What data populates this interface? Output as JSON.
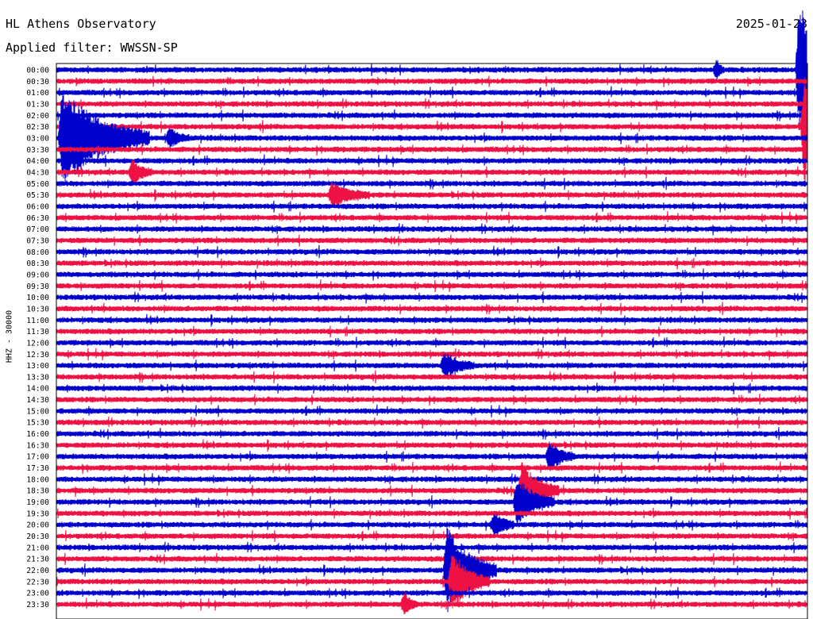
{
  "header": {
    "station": "HL Athens Observatory",
    "date": "2025-01-23",
    "filter": "Applied filter: WWSSN-SP"
  },
  "chart_data": {
    "type": "line",
    "title": "HL Athens Observatory",
    "subtitle": "Applied filter: WWSSN-SP",
    "ylabel": "HHZ - 30000",
    "row_labels": [
      "00:00",
      "00:30",
      "01:00",
      "01:30",
      "02:00",
      "02:30",
      "03:00",
      "03:30",
      "04:00",
      "04:30",
      "05:00",
      "05:30",
      "06:00",
      "06:30",
      "07:00",
      "07:30",
      "08:00",
      "08:30",
      "09:00",
      "09:30",
      "10:00",
      "10:30",
      "11:00",
      "11:30",
      "12:00",
      "12:30",
      "13:00",
      "13:30",
      "14:00",
      "14:30",
      "15:00",
      "15:30",
      "16:00",
      "16:30",
      "17:00",
      "17:30",
      "18:00",
      "18:30",
      "19:00",
      "19:30",
      "20:00",
      "20:30",
      "21:00",
      "21:30",
      "22:00",
      "22:30",
      "23:00",
      "23:30"
    ],
    "row_colors": [
      "#0000cc",
      "#ee1144"
    ],
    "x_range_minutes": [
      0,
      30
    ],
    "events": [
      {
        "row": "03:00",
        "minute": 0.2,
        "amp": 5.0,
        "len": 3.5
      },
      {
        "row": "00:00",
        "minute": 29.7,
        "amp": 7.0,
        "len": 2.5
      },
      {
        "row": "02:30",
        "minute": 29.9,
        "amp": 5.5,
        "len": 2.0
      },
      {
        "row": "18:30",
        "minute": 18.6,
        "amp": 3.0,
        "len": 1.5
      },
      {
        "row": "19:00",
        "minute": 18.4,
        "amp": 2.5,
        "len": 1.5
      },
      {
        "row": "22:00",
        "minute": 15.6,
        "amp": 4.5,
        "len": 2.0
      },
      {
        "row": "22:30",
        "minute": 15.8,
        "amp": 3.0,
        "len": 1.5
      },
      {
        "row": "17:00",
        "minute": 19.7,
        "amp": 1.5,
        "len": 1.0
      },
      {
        "row": "13:00",
        "minute": 15.5,
        "amp": 1.2,
        "len": 1.2
      },
      {
        "row": "20:00",
        "minute": 17.5,
        "amp": 1.3,
        "len": 0.8
      },
      {
        "row": "05:30",
        "minute": 11.0,
        "amp": 1.2,
        "len": 1.5
      },
      {
        "row": "23:30",
        "minute": 13.9,
        "amp": 1.2,
        "len": 0.5
      },
      {
        "row": "00:00",
        "minute": 26.4,
        "amp": 1.0,
        "len": 0.3
      },
      {
        "row": "04:30",
        "minute": 3.0,
        "amp": 1.3,
        "len": 0.8
      },
      {
        "row": "03:00",
        "minute": 4.5,
        "amp": 1.0,
        "len": 0.8
      }
    ]
  }
}
